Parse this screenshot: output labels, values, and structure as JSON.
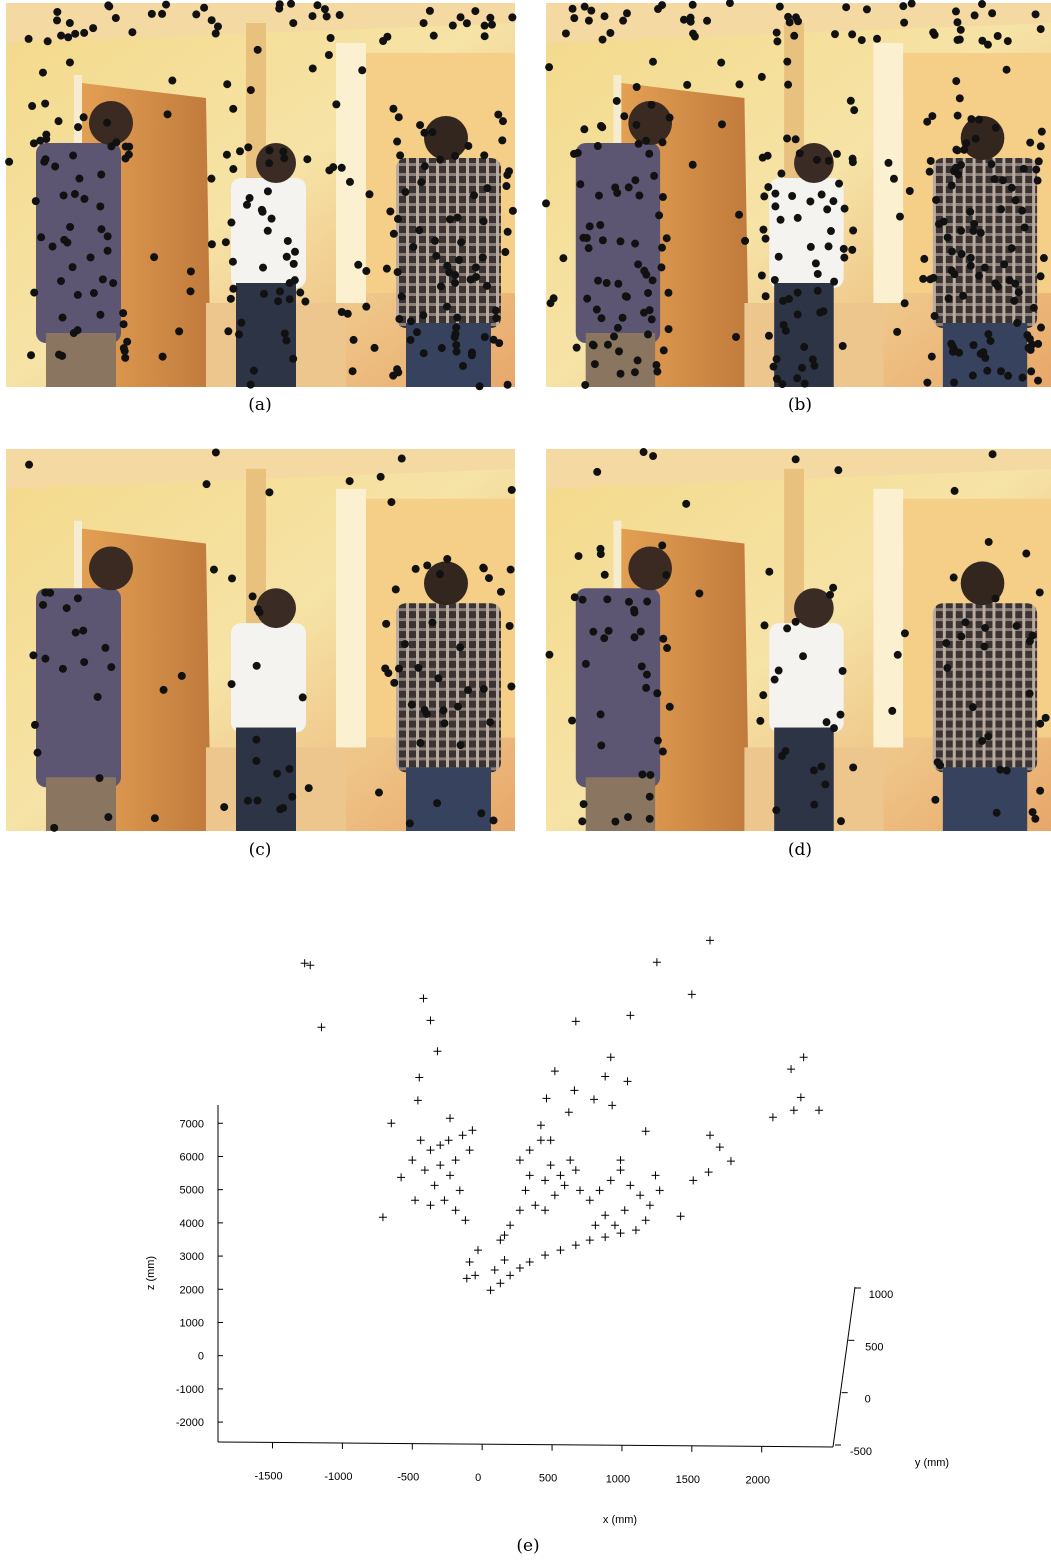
{
  "panels": [
    {
      "caption": "(a)"
    },
    {
      "caption": "(b)"
    },
    {
      "caption": "(c)"
    },
    {
      "caption": "(d)"
    }
  ],
  "chart_data": {
    "type": "scatter3d",
    "caption": "(e)",
    "xlabel": "x (mm)",
    "ylabel": "y (mm)",
    "zlabel": "z (mm)",
    "marker": "+",
    "color": "#000000",
    "xlim": [
      -1890,
      2510
    ],
    "xticks": [
      -1500,
      -1000,
      -500,
      0,
      500,
      1000,
      1500,
      2000
    ],
    "ylim": [
      -500,
      1000
    ],
    "yticks": [
      -500,
      0,
      500,
      1000
    ],
    "zlim": [
      -2600,
      7550
    ],
    "zticks": [
      -2000,
      -1000,
      0,
      1000,
      2000,
      3000,
      4000,
      5000,
      6000,
      7000
    ],
    "x": [
      -1270,
      -1230,
      -1150,
      -420,
      -370,
      -320,
      -450,
      -460,
      -650,
      -710,
      -580,
      670,
      1060,
      1250,
      1630,
      1500,
      920,
      880,
      1040,
      660,
      520,
      2210,
      2300,
      2280,
      2230,
      2410,
      2080,
      1630,
      1700,
      1780,
      1620,
      1510,
      1420,
      1170,
      800,
      930,
      620,
      460,
      -440,
      -370,
      -300,
      -230,
      -190,
      -140,
      -90,
      -410,
      -340,
      -270,
      -190,
      -120,
      -300,
      -480,
      -370,
      -160,
      -230,
      -70,
      -500,
      -240,
      270,
      340,
      420,
      490,
      560,
      630,
      310,
      380,
      450,
      520,
      590,
      670,
      340,
      450,
      420,
      700,
      270,
      490,
      770,
      840,
      920,
      990,
      1060,
      1130,
      1200,
      880,
      950,
      1020,
      1100,
      1170,
      1240,
      810,
      990,
      1270,
      60,
      130,
      200,
      270,
      340,
      450,
      560,
      670,
      770,
      880,
      990,
      90,
      160,
      -30,
      -90,
      -50,
      -110,
      130,
      200,
      160
    ],
    "values": [
      11820,
      11760,
      9890,
      10760,
      10100,
      9170,
      8380,
      7690,
      7000,
      4170,
      5370,
      10070,
      10250,
      11850,
      12510,
      10880,
      8990,
      8410,
      8260,
      7990,
      8570,
      8630,
      8990,
      7780,
      7390,
      7390,
      7180,
      6640,
      6280,
      5860,
      5530,
      5280,
      4200,
      6760,
      7720,
      7540,
      7330,
      7750,
      6490,
      6190,
      6340,
      7150,
      5890,
      6640,
      6190,
      5590,
      5130,
      4680,
      4380,
      4080,
      5740,
      4680,
      4530,
      4980,
      5430,
      6790,
      5890,
      6490,
      5890,
      6190,
      6490,
      5740,
      5430,
      5890,
      4980,
      4530,
      4380,
      4830,
      5130,
      5590,
      5430,
      5280,
      6940,
      4980,
      4380,
      6490,
      4680,
      4980,
      5280,
      5590,
      5130,
      4830,
      4530,
      4230,
      3930,
      4380,
      3780,
      4080,
      5430,
      3930,
      5890,
      4980,
      1970,
      2180,
      2420,
      2640,
      2820,
      3030,
      3180,
      3330,
      3480,
      3570,
      3690,
      2580,
      2880,
      3180,
      2820,
      2420,
      2330,
      3480,
      3930,
      3630
    ]
  }
}
